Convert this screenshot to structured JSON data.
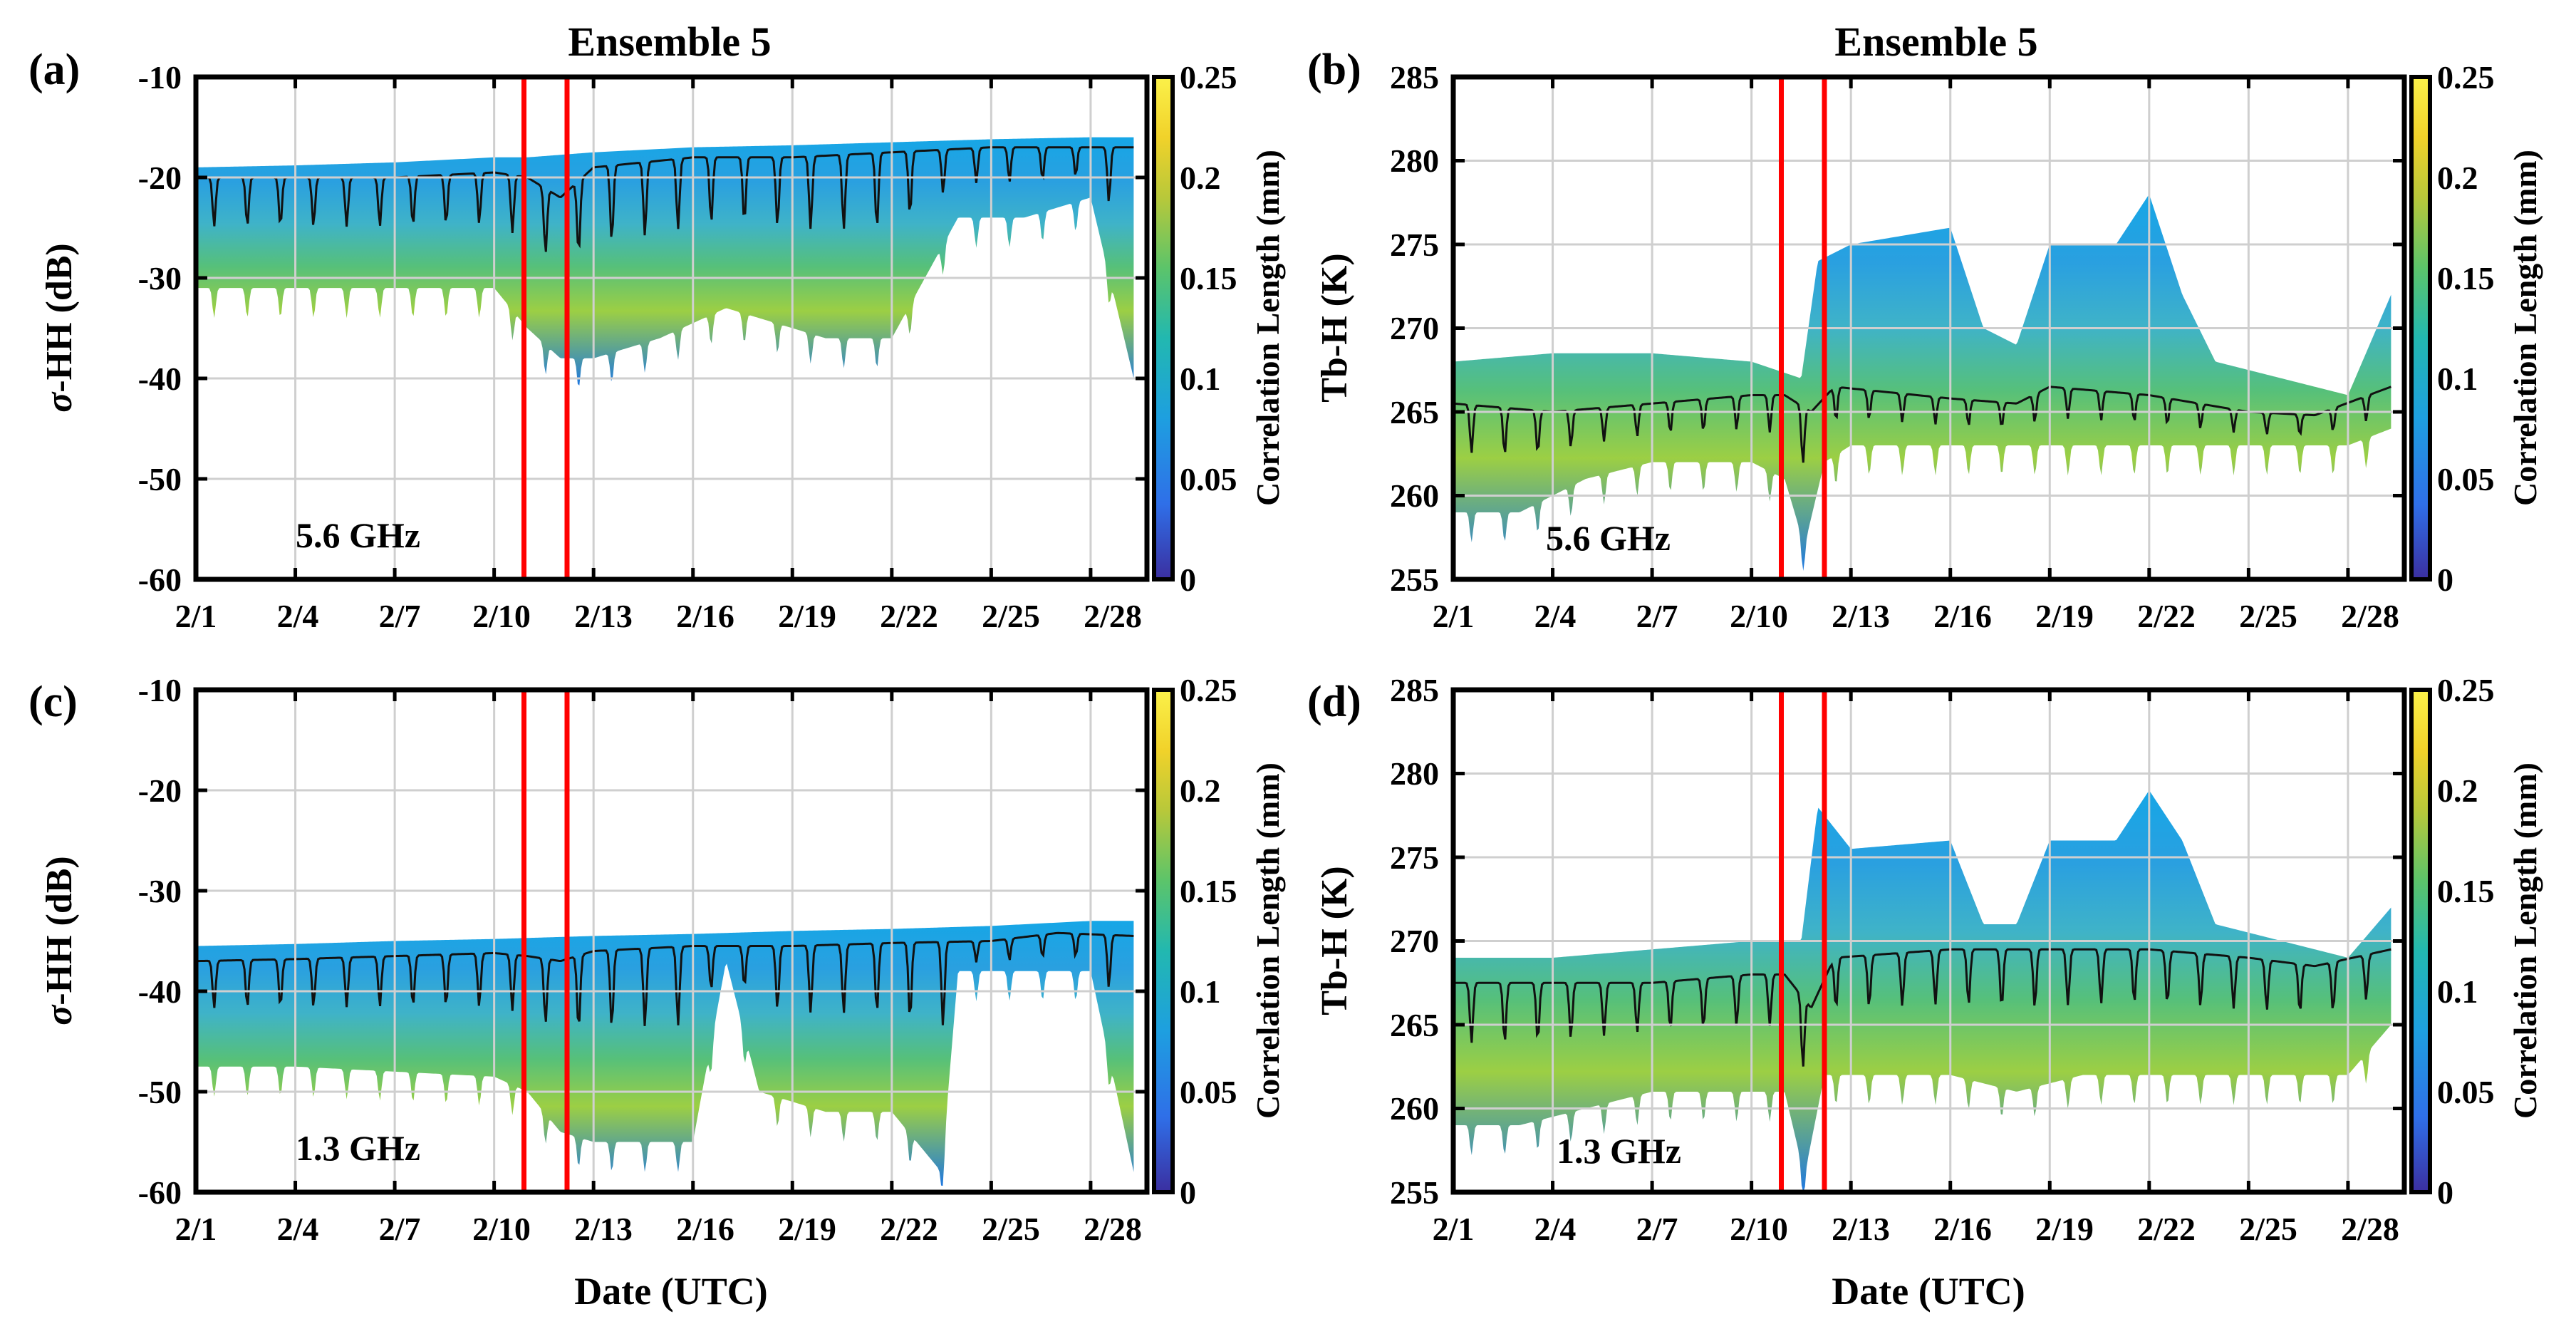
{
  "figure": {
    "title": "Ensemble 5"
  },
  "colorbar": {
    "label": "Correlation Length (mm)",
    "range": [
      0,
      0.25
    ],
    "ticks": [
      "0.25",
      "0.2",
      "0.15",
      "0.1",
      "0.05",
      "0"
    ],
    "colormap": [
      "#3b2fa0",
      "#2f6fe8",
      "#1e9fe0",
      "#22b8b0",
      "#5cc46a",
      "#b8c83a",
      "#f1d22a",
      "#fbf14a"
    ]
  },
  "colors": {
    "highlight_box": "#ff0000",
    "median_line": "#111111",
    "grid": "#cfcfcf"
  },
  "xaxis": {
    "label": "Date (UTC)",
    "ticks": [
      "2/1",
      "2/4",
      "2/7",
      "2/10",
      "2/13",
      "2/16",
      "2/19",
      "2/22",
      "2/25",
      "2/28"
    ],
    "tick_days": [
      1,
      4,
      7,
      10,
      13,
      16,
      19,
      22,
      25,
      28
    ],
    "range_days": [
      1,
      29.7
    ],
    "highlight_days": [
      10.9,
      12.2
    ]
  },
  "chart_data": [
    {
      "id": "a",
      "panel_label": "(a)",
      "type": "area",
      "title": "Ensemble 5",
      "ylabel": "σ-HH (dB)",
      "ylim": [
        -60,
        -10
      ],
      "yticks": [
        "-10",
        "-20",
        "-30",
        "-40",
        "-50",
        "-60"
      ],
      "annotation": "5.6 GHz",
      "series": [
        {
          "name": "ensemble upper envelope",
          "x": [
            1,
            4,
            7,
            10,
            11,
            13,
            16,
            19,
            22,
            25,
            28,
            29.3
          ],
          "values": [
            -19,
            -18.8,
            -18.5,
            -18,
            -18,
            -17.5,
            -17,
            -16.8,
            -16.5,
            -16.2,
            -16,
            -16
          ]
        },
        {
          "name": "ensemble lower envelope",
          "x": [
            1,
            4,
            7,
            10,
            11,
            12,
            13,
            15,
            17,
            18,
            20,
            22,
            24,
            26,
            28,
            29.3
          ],
          "values": [
            -31,
            -31,
            -31,
            -31,
            -35,
            -38,
            -38,
            -36,
            -33,
            -34,
            -36,
            -36,
            -24,
            -24,
            -22,
            -40
          ]
        },
        {
          "name": "median",
          "x": [
            1,
            4,
            7,
            10,
            11,
            12,
            13,
            16,
            19,
            22,
            25,
            28,
            29.3
          ],
          "values": [
            -20,
            -20,
            -20,
            -19.5,
            -20,
            -22,
            -19,
            -18,
            -18,
            -17.5,
            -17,
            -17,
            -17
          ]
        }
      ]
    },
    {
      "id": "b",
      "panel_label": "(b)",
      "type": "area",
      "title": "Ensemble 5",
      "ylabel": "Tb-H (K)",
      "ylim": [
        255,
        285
      ],
      "yticks": [
        "285",
        "280",
        "275",
        "270",
        "265",
        "260",
        "255"
      ],
      "annotation": "5.6 GHz",
      "series": [
        {
          "name": "ensemble upper envelope",
          "x": [
            1,
            4,
            7,
            10,
            11.5,
            12,
            13,
            16,
            17,
            18,
            19,
            21,
            22,
            23,
            24,
            26,
            28,
            29.3
          ],
          "values": [
            268,
            268.5,
            268.5,
            268,
            267,
            274,
            275,
            276,
            270,
            269,
            275,
            275,
            278,
            272,
            268,
            267,
            266,
            272
          ]
        },
        {
          "name": "ensemble lower envelope",
          "x": [
            1,
            3,
            5,
            7,
            10,
            11,
            11.6,
            12.2,
            13,
            16,
            18,
            20,
            23,
            26,
            28,
            29.3
          ],
          "values": [
            259,
            259,
            261,
            262,
            262,
            261,
            257,
            262,
            263,
            263,
            263,
            263,
            263,
            263,
            263,
            264
          ]
        },
        {
          "name": "median",
          "x": [
            1,
            4,
            7,
            10,
            11,
            11.8,
            12.5,
            16,
            18,
            19,
            22,
            25,
            27,
            29.3
          ],
          "values": [
            265.5,
            265,
            265.5,
            266,
            266,
            265,
            266.5,
            265.8,
            265.5,
            266.5,
            266,
            265,
            264.8,
            266.5
          ]
        }
      ]
    },
    {
      "id": "c",
      "panel_label": "(c)",
      "type": "area",
      "ylabel": "σ-HH (dB)",
      "ylim": [
        -60,
        -10
      ],
      "yticks": [
        "-10",
        "-20",
        "-30",
        "-40",
        "-50",
        "-60"
      ],
      "annotation": "1.3 GHz",
      "series": [
        {
          "name": "ensemble upper envelope",
          "x": [
            1,
            4,
            7,
            10,
            13,
            16,
            19,
            22,
            25,
            28,
            29.3
          ],
          "values": [
            -35.5,
            -35.3,
            -35,
            -34.8,
            -34.5,
            -34.3,
            -34,
            -33.8,
            -33.5,
            -33,
            -33
          ]
        },
        {
          "name": "ensemble lower envelope",
          "x": [
            1,
            4,
            7,
            10,
            11,
            12,
            13,
            16,
            17,
            18,
            20,
            22,
            23.5,
            24,
            26,
            28,
            29.3
          ],
          "values": [
            -47.5,
            -47.5,
            -48,
            -48.5,
            -50,
            -54,
            -55,
            -55,
            -37,
            -50,
            -52,
            -52,
            -58,
            -38,
            -38,
            -38,
            -58
          ]
        },
        {
          "name": "median",
          "x": [
            1,
            4,
            7,
            10,
            11,
            12,
            13,
            16,
            19,
            22,
            25,
            27,
            29.3
          ],
          "values": [
            -37,
            -36.8,
            -36.5,
            -36.2,
            -36.5,
            -37,
            -36,
            -35.5,
            -35.5,
            -35.2,
            -35,
            -34.2,
            -34.5
          ]
        }
      ]
    },
    {
      "id": "d",
      "panel_label": "(d)",
      "type": "area",
      "ylabel": "Tb-H (K)",
      "ylim": [
        255,
        285
      ],
      "yticks": [
        "285",
        "280",
        "275",
        "270",
        "265",
        "260",
        "255"
      ],
      "annotation": "1.3 GHz",
      "series": [
        {
          "name": "ensemble upper envelope",
          "x": [
            1,
            4,
            7,
            10,
            11.5,
            12,
            13,
            16,
            17,
            18,
            19,
            21,
            22,
            23,
            24,
            26,
            28,
            29.3
          ],
          "values": [
            269,
            269,
            269.5,
            270,
            270,
            278,
            275.5,
            276,
            271,
            271,
            276,
            276,
            279,
            276,
            271,
            270,
            269,
            272
          ]
        },
        {
          "name": "ensemble lower envelope",
          "x": [
            1,
            3,
            5,
            7,
            10,
            11,
            11.6,
            12.2,
            13,
            16,
            18,
            20,
            23,
            26,
            28,
            29.3
          ],
          "values": [
            259,
            259,
            260,
            261,
            261,
            261,
            256,
            262,
            262,
            262,
            261,
            262,
            262,
            262,
            262,
            265
          ]
        },
        {
          "name": "median",
          "x": [
            1,
            4,
            7,
            10,
            11,
            11.8,
            12.5,
            16,
            19,
            22,
            25,
            27,
            29.3
          ],
          "values": [
            267.5,
            267.5,
            267.5,
            268,
            268,
            266,
            269,
            269.5,
            269.5,
            269.5,
            269,
            268.5,
            269.5
          ]
        }
      ]
    }
  ]
}
